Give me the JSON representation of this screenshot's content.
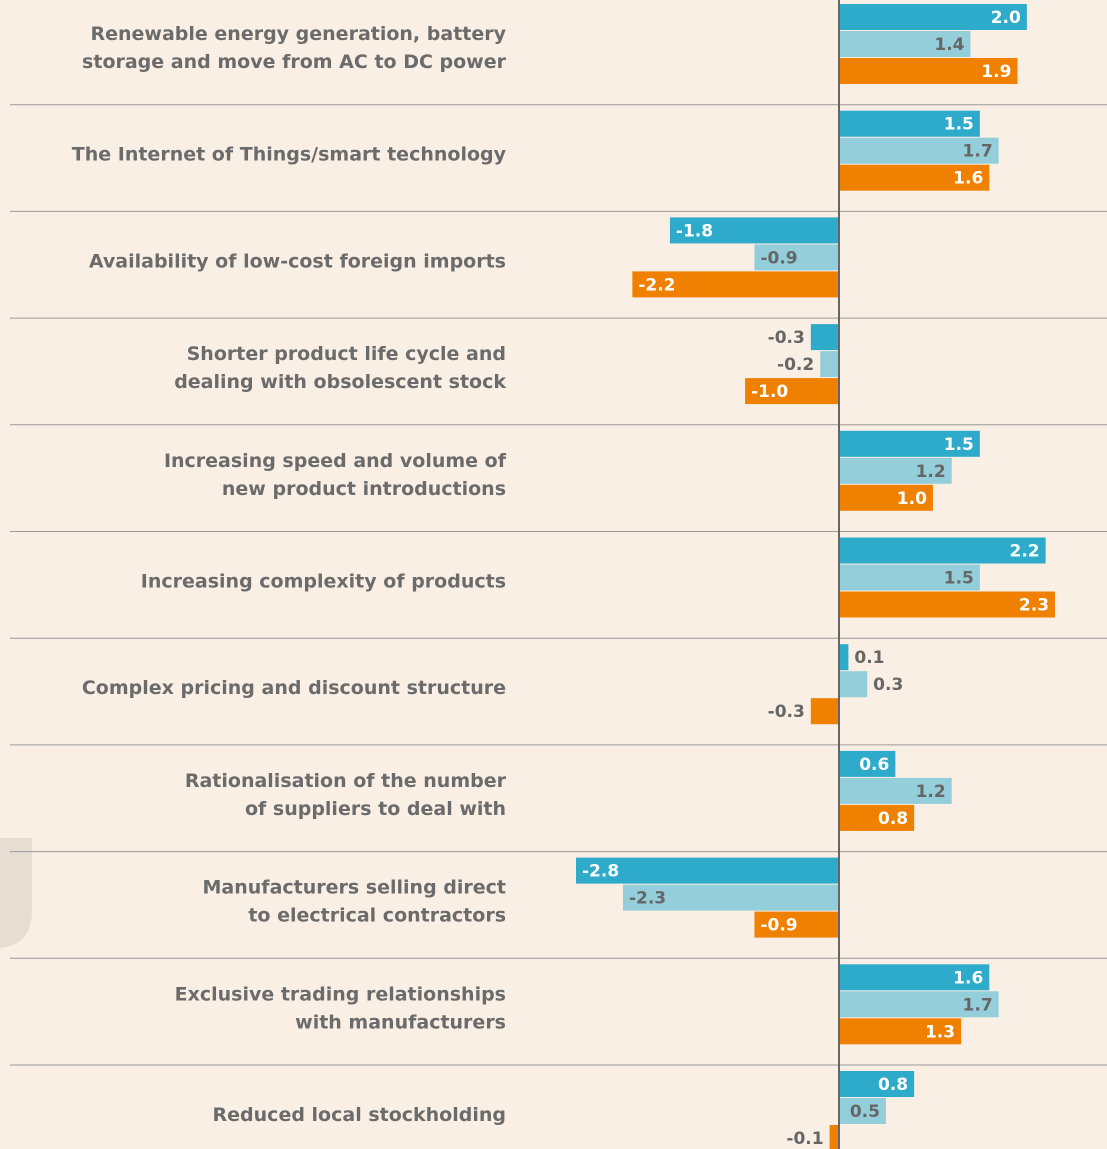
{
  "chart_data": {
    "type": "bar",
    "orientation": "horizontal",
    "categories": [
      [
        "Renewable energy generation, battery",
        "storage and move from AC to DC power"
      ],
      [
        "The Internet of Things/smart technology"
      ],
      [
        "Availability of low-cost foreign imports"
      ],
      [
        "Shorter product life cycle and",
        "dealing with obsolescent stock"
      ],
      [
        "Increasing speed and volume of",
        "new product introductions"
      ],
      [
        "Increasing complexity of products"
      ],
      [
        "Complex pricing and discount structure"
      ],
      [
        "Rationalisation of the number",
        "of suppliers to deal with"
      ],
      [
        "Manufacturers selling direct",
        "to electrical contractors"
      ],
      [
        "Exclusive trading relationships",
        "with manufacturers"
      ],
      [
        "Reduced local stockholding"
      ]
    ],
    "series": [
      {
        "color": "#2eaacb",
        "values": [
          2.0,
          1.5,
          -1.8,
          -0.3,
          1.5,
          2.2,
          0.1,
          0.6,
          -2.8,
          1.6,
          0.8
        ],
        "value_labels": [
          "2.0",
          "1.5",
          "-1.8",
          "-0.3",
          "1.5",
          "2.2",
          "0.1",
          "0.6",
          "-2.8",
          "1.6",
          "0.8"
        ]
      },
      {
        "color": "#94cedb",
        "values": [
          1.4,
          1.7,
          -0.9,
          -0.2,
          1.2,
          1.5,
          0.3,
          1.2,
          -2.3,
          1.7,
          0.5
        ],
        "value_labels": [
          "1.4",
          "1.7",
          "-0.9",
          "-0.2",
          "1.2",
          "1.5",
          "0.3",
          "1.2",
          "-2.3",
          "1.7",
          "0.5"
        ]
      },
      {
        "color": "#f08000",
        "values": [
          1.9,
          1.6,
          -2.2,
          -1.0,
          1.0,
          2.3,
          -0.3,
          0.8,
          -0.9,
          1.3,
          -0.1
        ],
        "value_labels": [
          "1.9",
          "1.6",
          "-2.2",
          "-1.0",
          "1.0",
          "2.3",
          "-0.3",
          "0.8",
          "-0.9",
          "1.3",
          "-0.1"
        ]
      }
    ]
  }
}
